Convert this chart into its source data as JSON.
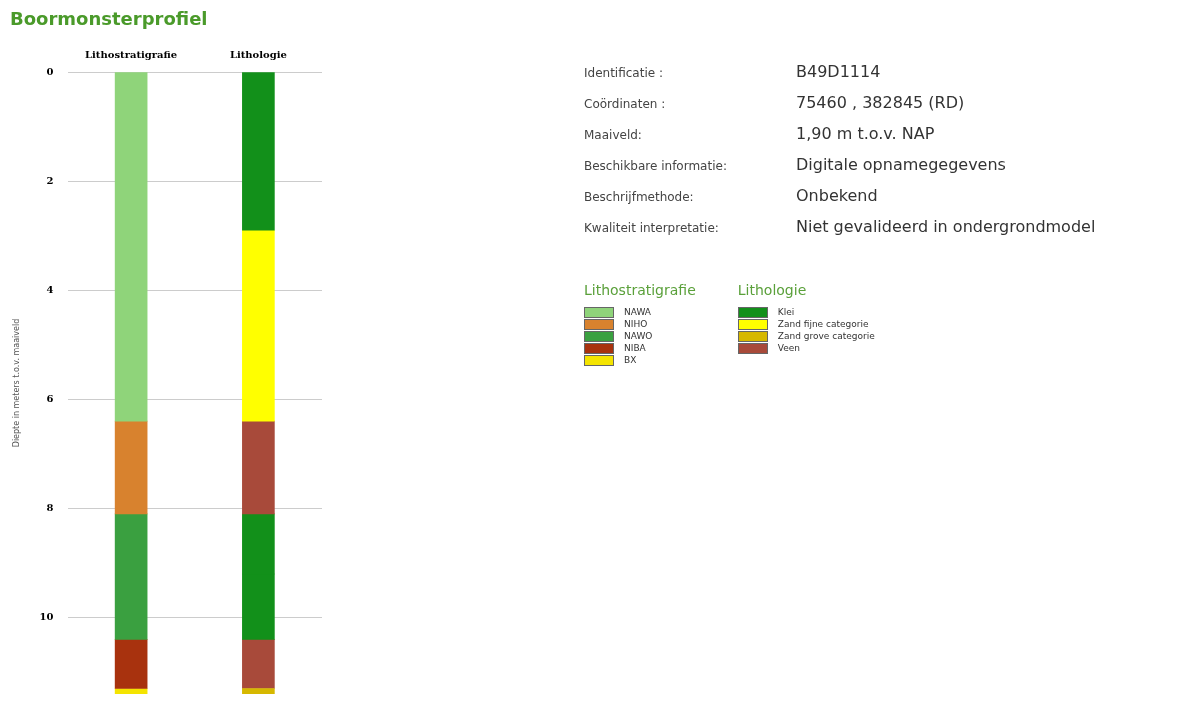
{
  "chart_data": [
    {
      "type": "bar",
      "title": "Boormonsterprofiel",
      "ylabel": "Diepte in meters t.o.v. maaiveld",
      "categories": [
        "Lithostratigrafie",
        "Lithologie"
      ],
      "ylim": [
        11.4,
        0
      ],
      "yticks": [
        0,
        2,
        4,
        6,
        8,
        10
      ],
      "grid": "y",
      "legend": "right",
      "series": [
        {
          "name": "NAWA",
          "color": "#8fd47a",
          "values": [
            6.4,
            null
          ],
          "base": [
            0,
            null
          ]
        },
        {
          "name": "NIHO",
          "color": "#d8822e",
          "values": [
            1.7,
            null
          ],
          "base": [
            6.4,
            null
          ]
        },
        {
          "name": "NAWO",
          "color": "#3aa040",
          "values": [
            2.3,
            null
          ],
          "base": [
            8.1,
            null
          ]
        },
        {
          "name": "NIBA",
          "color": "#a8320e",
          "values": [
            0.9,
            null
          ],
          "base": [
            10.4,
            null
          ]
        },
        {
          "name": "BX",
          "color": "#f4e400",
          "values": [
            0.1,
            null
          ],
          "base": [
            11.3,
            null
          ]
        },
        {
          "name": "Klei",
          "color": "#12901a",
          "values": [
            null,
            2.9
          ],
          "base": [
            null,
            0
          ]
        },
        {
          "name": "Zand fijne categorie",
          "color": "#ffff00",
          "values": [
            null,
            3.5
          ],
          "base": [
            null,
            2.9
          ]
        },
        {
          "name": "Zand grove categorie",
          "color": "#d6b800",
          "values": [
            null,
            0.1
          ],
          "base": [
            null,
            11.3
          ]
        },
        {
          "name": "Veen",
          "color": "#a84a3a",
          "values": [
            null,
            1.7
          ],
          "base": [
            null,
            6.4
          ]
        },
        {
          "color": "#12901a",
          "values": [
            null,
            1.1
          ],
          "base": [
            null,
            8.1
          ]
        },
        {
          "color": "#12901a",
          "values": [
            null,
            1.2
          ],
          "base": [
            null,
            9.2
          ]
        },
        {
          "color": "#a84a3a",
          "values": [
            null,
            0.9
          ],
          "base": [
            null,
            10.4
          ]
        }
      ]
    },
    {
      "type": "other",
      "annotations": [
        "Identificatie :",
        "B49D1114",
        "Coördinaten :",
        "75460 , 382845 (RD)",
        "Maaiveld:",
        "1,90 m t.o.v. NAP",
        "Beschikbare informatie:",
        "Digitale opnamegegevens",
        "Beschrijfmethode:",
        "Onbekend",
        "Kwaliteit interpretatie:",
        "Niet gevalideerd in ondergrondmodel"
      ]
    }
  ]
}
